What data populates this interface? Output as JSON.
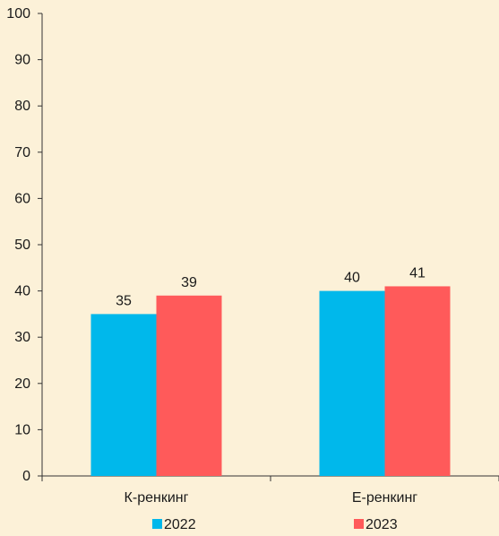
{
  "chart_data": {
    "type": "bar",
    "categories": [
      "К-ренкинг",
      "Е-ренкинг"
    ],
    "series": [
      {
        "name": "2022",
        "color": "#00b8eb",
        "values": [
          35,
          40
        ]
      },
      {
        "name": "2023",
        "color": "#ff5a5a",
        "values": [
          39,
          41
        ]
      }
    ],
    "ylim": [
      0,
      100
    ],
    "yticks": [
      0,
      10,
      20,
      30,
      40,
      50,
      60,
      70,
      80,
      90,
      100
    ],
    "data_labels": [
      [
        "35",
        "40"
      ],
      [
        "39",
        "41"
      ]
    ],
    "grid": false,
    "legend_position": "bottom"
  }
}
